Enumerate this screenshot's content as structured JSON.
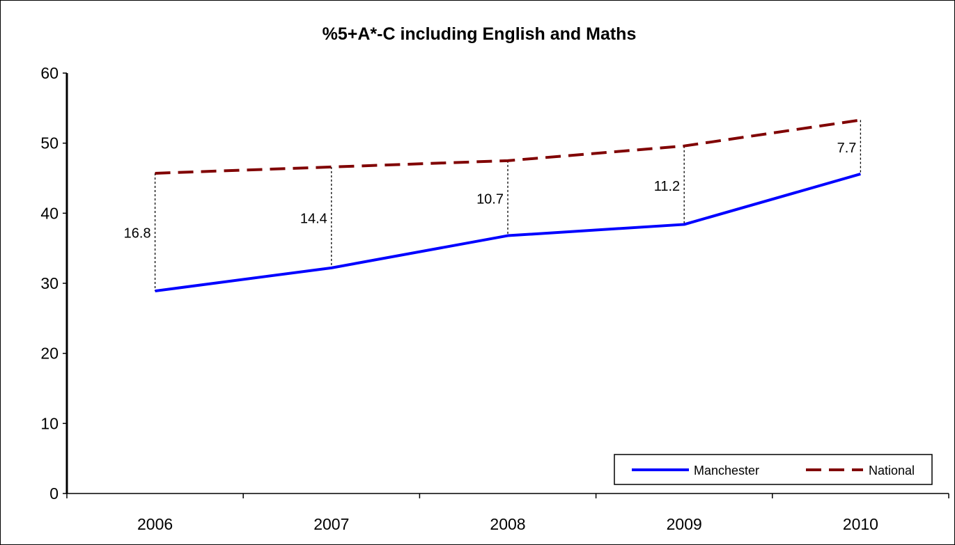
{
  "chart_data": {
    "type": "line",
    "title": "%5+A*-C including English and Maths",
    "xlabel": "",
    "ylabel": "",
    "categories": [
      "2006",
      "2007",
      "2008",
      "2009",
      "2010"
    ],
    "ylim": [
      0,
      60
    ],
    "yticks": [
      "0",
      "10",
      "20",
      "30",
      "40",
      "50",
      "60"
    ],
    "grid": false,
    "legend_position": "bottom-right",
    "series": [
      {
        "name": "Manchester",
        "values": [
          28.9,
          32.2,
          36.8,
          38.4,
          45.6
        ],
        "color": "#0000ff",
        "style": "solid"
      },
      {
        "name": "National",
        "values": [
          45.7,
          46.6,
          47.5,
          49.6,
          53.3
        ],
        "color": "#800000",
        "style": "dashed"
      }
    ],
    "gap_labels": [
      "16.8",
      "14.4",
      "10.7",
      "11.2",
      "7.7"
    ]
  }
}
